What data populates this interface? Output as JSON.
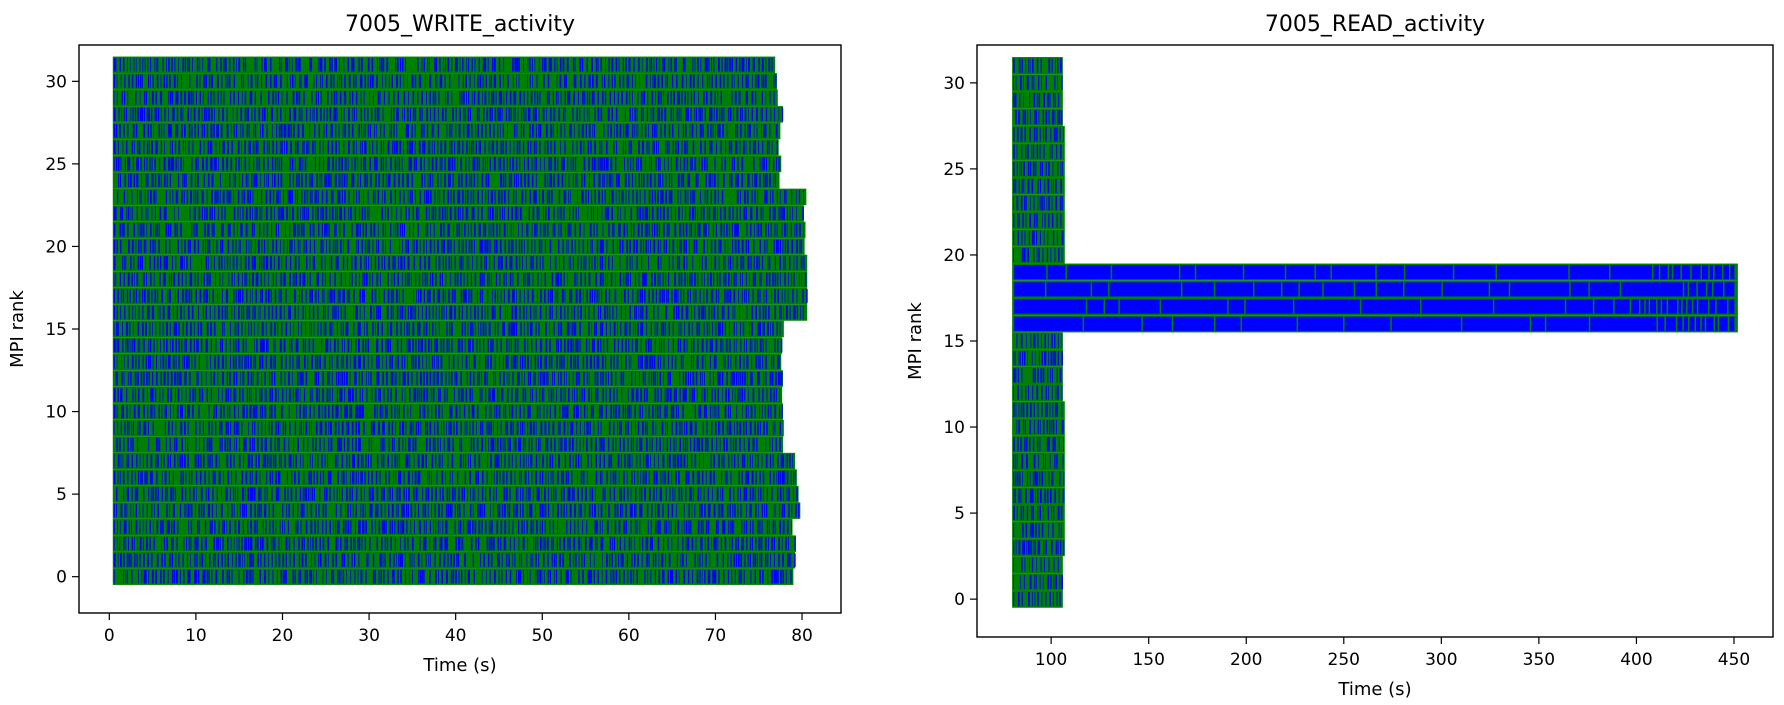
{
  "chart_data": [
    {
      "type": "timeline",
      "title": "7005_WRITE_activity",
      "xlabel": "Time (s)",
      "ylabel": "MPI rank",
      "xlim": [
        -3.5,
        84.5
      ],
      "ylim": [
        -2.2,
        32.2
      ],
      "xticks": [
        0,
        10,
        20,
        30,
        40,
        50,
        60,
        70,
        80
      ],
      "yticks": [
        0,
        5,
        10,
        15,
        20,
        25,
        30
      ],
      "grid": false,
      "colors": {
        "fill": "#0000ff",
        "edge": "#008000"
      },
      "ranks": 32,
      "rank_extents": [
        {
          "rank": 0,
          "start": 0.4,
          "end": 79.0
        },
        {
          "rank": 1,
          "start": 0.4,
          "end": 79.2
        },
        {
          "rank": 2,
          "start": 0.4,
          "end": 79.3
        },
        {
          "rank": 3,
          "start": 0.4,
          "end": 78.9
        },
        {
          "rank": 4,
          "start": 0.4,
          "end": 79.8
        },
        {
          "rank": 5,
          "start": 0.4,
          "end": 79.6
        },
        {
          "rank": 6,
          "start": 0.4,
          "end": 79.4
        },
        {
          "rank": 7,
          "start": 0.4,
          "end": 79.2
        },
        {
          "rank": 8,
          "start": 0.4,
          "end": 77.8
        },
        {
          "rank": 9,
          "start": 0.4,
          "end": 77.9
        },
        {
          "rank": 10,
          "start": 0.4,
          "end": 77.8
        },
        {
          "rank": 11,
          "start": 0.4,
          "end": 77.7
        },
        {
          "rank": 12,
          "start": 0.4,
          "end": 77.8
        },
        {
          "rank": 13,
          "start": 0.4,
          "end": 77.6
        },
        {
          "rank": 14,
          "start": 0.4,
          "end": 77.7
        },
        {
          "rank": 15,
          "start": 0.4,
          "end": 77.9
        },
        {
          "rank": 16,
          "start": 0.4,
          "end": 80.6
        },
        {
          "rank": 17,
          "start": 0.4,
          "end": 80.6
        },
        {
          "rank": 18,
          "start": 0.4,
          "end": 80.6
        },
        {
          "rank": 19,
          "start": 0.4,
          "end": 80.6
        },
        {
          "rank": 20,
          "start": 0.4,
          "end": 80.3
        },
        {
          "rank": 21,
          "start": 0.4,
          "end": 80.4
        },
        {
          "rank": 22,
          "start": 0.4,
          "end": 80.2
        },
        {
          "rank": 23,
          "start": 0.4,
          "end": 80.5
        },
        {
          "rank": 24,
          "start": 0.4,
          "end": 77.4
        },
        {
          "rank": 25,
          "start": 0.4,
          "end": 77.6
        },
        {
          "rank": 26,
          "start": 0.4,
          "end": 77.3
        },
        {
          "rank": 27,
          "start": 0.4,
          "end": 77.5
        },
        {
          "rank": 28,
          "start": 0.4,
          "end": 77.8
        },
        {
          "rank": 29,
          "start": 0.4,
          "end": 77.2
        },
        {
          "rank": 30,
          "start": 0.4,
          "end": 77.1
        },
        {
          "rank": 31,
          "start": 0.4,
          "end": 76.9
        }
      ]
    },
    {
      "type": "timeline",
      "title": "7005_READ_activity",
      "xlabel": "Time (s)",
      "ylabel": "MPI rank",
      "xlim": [
        62,
        470
      ],
      "ylim": [
        -2.2,
        32.2
      ],
      "xticks": [
        100,
        150,
        200,
        250,
        300,
        350,
        400,
        450
      ],
      "yticks": [
        0,
        5,
        10,
        15,
        20,
        25,
        30
      ],
      "grid": false,
      "colors": {
        "fill": "#0000ff",
        "edge": "#008000"
      },
      "ranks": 32,
      "rank_extents": [
        {
          "rank": 0,
          "start": 80,
          "end": 106
        },
        {
          "rank": 1,
          "start": 80,
          "end": 106
        },
        {
          "rank": 2,
          "start": 80,
          "end": 106
        },
        {
          "rank": 3,
          "start": 80,
          "end": 107
        },
        {
          "rank": 4,
          "start": 80,
          "end": 107
        },
        {
          "rank": 5,
          "start": 80,
          "end": 107
        },
        {
          "rank": 6,
          "start": 80,
          "end": 107
        },
        {
          "rank": 7,
          "start": 80,
          "end": 107
        },
        {
          "rank": 8,
          "start": 80,
          "end": 107
        },
        {
          "rank": 9,
          "start": 80,
          "end": 107
        },
        {
          "rank": 10,
          "start": 80,
          "end": 107
        },
        {
          "rank": 11,
          "start": 80,
          "end": 107
        },
        {
          "rank": 12,
          "start": 80,
          "end": 106
        },
        {
          "rank": 13,
          "start": 80,
          "end": 106
        },
        {
          "rank": 14,
          "start": 80,
          "end": 106
        },
        {
          "rank": 15,
          "start": 80,
          "end": 106
        },
        {
          "rank": 16,
          "start": 80,
          "end": 452
        },
        {
          "rank": 17,
          "start": 80,
          "end": 452
        },
        {
          "rank": 18,
          "start": 80,
          "end": 452
        },
        {
          "rank": 19,
          "start": 80,
          "end": 452
        },
        {
          "rank": 20,
          "start": 80,
          "end": 107
        },
        {
          "rank": 21,
          "start": 80,
          "end": 107
        },
        {
          "rank": 22,
          "start": 80,
          "end": 107
        },
        {
          "rank": 23,
          "start": 80,
          "end": 107
        },
        {
          "rank": 24,
          "start": 80,
          "end": 107
        },
        {
          "rank": 25,
          "start": 80,
          "end": 107
        },
        {
          "rank": 26,
          "start": 80,
          "end": 107
        },
        {
          "rank": 27,
          "start": 80,
          "end": 107
        },
        {
          "rank": 28,
          "start": 80,
          "end": 106
        },
        {
          "rank": 29,
          "start": 80,
          "end": 106
        },
        {
          "rank": 30,
          "start": 80,
          "end": 106
        },
        {
          "rank": 31,
          "start": 80,
          "end": 106
        }
      ],
      "long_ops": [
        {
          "rank": 16,
          "start": 80,
          "end": 452
        },
        {
          "rank": 17,
          "start": 80,
          "end": 452
        },
        {
          "rank": 18,
          "start": 80,
          "end": 452
        },
        {
          "rank": 19,
          "start": 80,
          "end": 452
        }
      ]
    }
  ]
}
